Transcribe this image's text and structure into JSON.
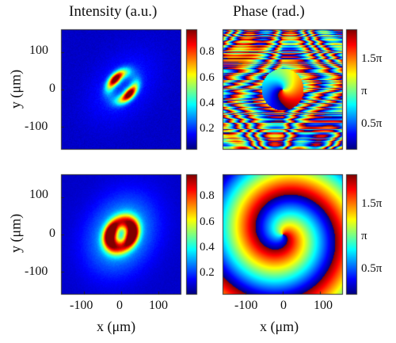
{
  "chart_data": [
    {
      "type": "heatmap",
      "title": "Intensity (a.u.)",
      "xlabel": "",
      "ylabel": "y (μm)",
      "xlim": [
        -160,
        160
      ],
      "ylim": [
        -160,
        160
      ],
      "yticks": [
        "100",
        "0",
        "-100"
      ],
      "colorbar": {
        "range": [
          0,
          1
        ],
        "ticks": [
          "0.8",
          "0.6",
          "0.4",
          "0.2"
        ]
      },
      "description_values": {
        "pattern": "two-lobe distorted ring",
        "peak_intensity": 1.0
      }
    },
    {
      "type": "heatmap",
      "title": "Phase (rad.)",
      "xlabel": "",
      "ylabel": "",
      "xlim": [
        -160,
        160
      ],
      "ylim": [
        -160,
        160
      ],
      "colorbar": {
        "range": [
          0,
          2
        ],
        "unit": "π",
        "ticks": [
          "1.5π",
          "π",
          "0.5π"
        ]
      }
    },
    {
      "type": "heatmap",
      "title": "",
      "xlabel": "x (μm)",
      "ylabel": "y (μm)",
      "xlim": [
        -160,
        160
      ],
      "ylim": [
        -160,
        160
      ],
      "xticks": [
        "-100",
        "0",
        "100"
      ],
      "yticks": [
        "100",
        "0",
        "-100"
      ],
      "colorbar": {
        "range": [
          0,
          1
        ],
        "ticks": [
          "0.8",
          "0.6",
          "0.4",
          "0.2"
        ]
      }
    },
    {
      "type": "heatmap",
      "title": "",
      "xlabel": "x (μm)",
      "ylabel": "",
      "xlim": [
        -160,
        160
      ],
      "ylim": [
        -160,
        160
      ],
      "xticks": [
        "-100",
        "0",
        "100"
      ],
      "colorbar": {
        "range": [
          0,
          2
        ],
        "unit": "π",
        "ticks": [
          "1.5π",
          "π",
          "0.5π"
        ]
      }
    }
  ]
}
